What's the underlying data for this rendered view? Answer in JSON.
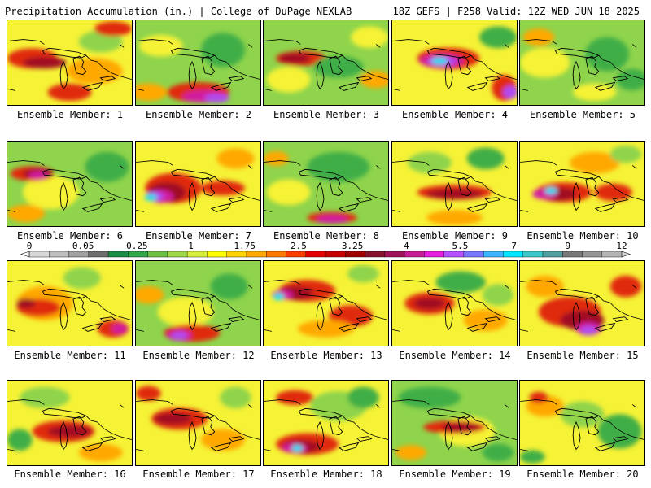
{
  "header": {
    "title": "Precipitation Accumulation (in.) | College of DuPage NEXLAB",
    "run_info": "18Z GEFS | F258 Valid: 12Z WED JUN 18 2025"
  },
  "colorbar": {
    "labels": [
      "0",
      "0.05",
      "0.25",
      "1",
      "1.75",
      "2.5",
      "3.25",
      "4",
      "5.5",
      "7",
      "9",
      "12"
    ],
    "colors": [
      "#d8d8d8",
      "#bebebe",
      "#a0a0a0",
      "#6e6e6e",
      "#1e8c46",
      "#33a64a",
      "#6cc048",
      "#9ed84a",
      "#d8f03c",
      "#ffff00",
      "#ffd200",
      "#ffaa00",
      "#ff7800",
      "#ff3c00",
      "#e60000",
      "#c80000",
      "#a00000",
      "#821430",
      "#a0145a",
      "#c81e96",
      "#e61edc",
      "#b450ff",
      "#7878ff",
      "#3cb4ff",
      "#00e6ff",
      "#3cc8c8",
      "#50a0a0",
      "#787878",
      "#969696",
      "#b4b4b4"
    ]
  },
  "legend_palette": {
    "light_green": "#8fd44c",
    "green": "#3fae46",
    "yellow": "#f6f236",
    "orange": "#ffa800",
    "red": "#e02a10",
    "dark_red": "#a00c24",
    "magenta": "#d21ea0",
    "purple": "#b04cf0",
    "cyan": "#24d8ee"
  },
  "panels": [
    {
      "label": "Ensemble Member: 1",
      "base": "yellow",
      "blobs": [
        [
          "red",
          0.2,
          0.45,
          0.35,
          0.18
        ],
        [
          "dark_red",
          0.3,
          0.5,
          0.3,
          0.08
        ],
        [
          "orange",
          0.7,
          0.6,
          0.4,
          0.25
        ],
        [
          "light_green",
          0.75,
          0.25,
          0.3,
          0.2
        ],
        [
          "red",
          0.85,
          0.1,
          0.25,
          0.12
        ],
        [
          "red",
          0.5,
          0.85,
          0.3,
          0.15
        ]
      ]
    },
    {
      "label": "Ensemble Member: 2",
      "base": "light_green",
      "blobs": [
        [
          "green",
          0.7,
          0.35,
          0.3,
          0.35
        ],
        [
          "yellow",
          0.2,
          0.3,
          0.3,
          0.2
        ],
        [
          "red",
          0.5,
          0.85,
          0.45,
          0.18
        ],
        [
          "magenta",
          0.55,
          0.9,
          0.3,
          0.09
        ],
        [
          "purple",
          0.65,
          0.92,
          0.15,
          0.05
        ],
        [
          "orange",
          0.1,
          0.85,
          0.25,
          0.15
        ]
      ]
    },
    {
      "label": "Ensemble Member: 3",
      "base": "light_green",
      "blobs": [
        [
          "yellow",
          0.2,
          0.7,
          0.3,
          0.25
        ],
        [
          "red",
          0.3,
          0.45,
          0.35,
          0.12
        ],
        [
          "dark_red",
          0.25,
          0.45,
          0.2,
          0.06
        ],
        [
          "green",
          0.6,
          0.55,
          0.35,
          0.2
        ],
        [
          "yellow",
          0.85,
          0.2,
          0.25,
          0.2
        ],
        [
          "orange",
          0.9,
          0.7,
          0.2,
          0.15
        ]
      ]
    },
    {
      "label": "Ensemble Member: 4",
      "base": "yellow",
      "blobs": [
        [
          "red",
          0.45,
          0.45,
          0.45,
          0.2
        ],
        [
          "magenta",
          0.4,
          0.48,
          0.3,
          0.1
        ],
        [
          "purple",
          0.4,
          0.48,
          0.18,
          0.06
        ],
        [
          "cyan",
          0.38,
          0.48,
          0.08,
          0.03
        ],
        [
          "green",
          0.85,
          0.2,
          0.25,
          0.2
        ],
        [
          "red",
          0.9,
          0.8,
          0.15,
          0.25
        ],
        [
          "purple",
          0.95,
          0.85,
          0.07,
          0.1
        ]
      ]
    },
    {
      "label": "Ensemble Member: 5",
      "base": "light_green",
      "blobs": [
        [
          "yellow",
          0.2,
          0.5,
          0.35,
          0.3
        ],
        [
          "green",
          0.7,
          0.4,
          0.3,
          0.35
        ],
        [
          "orange",
          0.15,
          0.2,
          0.2,
          0.15
        ],
        [
          "yellow",
          0.6,
          0.85,
          0.3,
          0.15
        ],
        [
          "green",
          0.9,
          0.7,
          0.2,
          0.2
        ]
      ]
    },
    {
      "label": "Ensemble Member: 6",
      "base": "light_green",
      "blobs": [
        [
          "yellow",
          0.35,
          0.6,
          0.4,
          0.35
        ],
        [
          "red",
          0.2,
          0.38,
          0.3,
          0.12
        ],
        [
          "dark_red",
          0.25,
          0.38,
          0.2,
          0.06
        ],
        [
          "magenta",
          0.25,
          0.4,
          0.1,
          0.04
        ],
        [
          "green",
          0.8,
          0.3,
          0.3,
          0.3
        ],
        [
          "orange",
          0.15,
          0.85,
          0.25,
          0.15
        ]
      ]
    },
    {
      "label": "Ensemble Member: 7",
      "base": "yellow",
      "blobs": [
        [
          "red",
          0.3,
          0.55,
          0.4,
          0.3
        ],
        [
          "dark_red",
          0.25,
          0.6,
          0.25,
          0.18
        ],
        [
          "magenta",
          0.2,
          0.65,
          0.15,
          0.1
        ],
        [
          "purple",
          0.15,
          0.65,
          0.1,
          0.06
        ],
        [
          "cyan",
          0.12,
          0.66,
          0.05,
          0.03
        ],
        [
          "red",
          0.7,
          0.55,
          0.3,
          0.12
        ],
        [
          "orange",
          0.8,
          0.2,
          0.25,
          0.18
        ]
      ]
    },
    {
      "label": "Ensemble Member: 8",
      "base": "light_green",
      "blobs": [
        [
          "green",
          0.6,
          0.3,
          0.45,
          0.3
        ],
        [
          "yellow",
          0.2,
          0.6,
          0.3,
          0.25
        ],
        [
          "red",
          0.55,
          0.9,
          0.35,
          0.08
        ],
        [
          "magenta",
          0.55,
          0.92,
          0.2,
          0.04
        ],
        [
          "orange",
          0.1,
          0.2,
          0.15,
          0.12
        ]
      ]
    },
    {
      "label": "Ensemble Member: 9",
      "base": "yellow",
      "blobs": [
        [
          "red",
          0.5,
          0.6,
          0.55,
          0.12
        ],
        [
          "dark_red",
          0.5,
          0.62,
          0.4,
          0.06
        ],
        [
          "light_green",
          0.3,
          0.25,
          0.3,
          0.2
        ],
        [
          "green",
          0.75,
          0.2,
          0.25,
          0.2
        ],
        [
          "orange",
          0.5,
          0.9,
          0.4,
          0.12
        ]
      ]
    },
    {
      "label": "Ensemble Member: 10",
      "base": "yellow",
      "blobs": [
        [
          "red",
          0.35,
          0.6,
          0.4,
          0.18
        ],
        [
          "dark_red",
          0.3,
          0.62,
          0.25,
          0.1
        ],
        [
          "magenta",
          0.2,
          0.62,
          0.15,
          0.07
        ],
        [
          "cyan",
          0.25,
          0.58,
          0.05,
          0.03
        ],
        [
          "red",
          0.75,
          0.6,
          0.25,
          0.15
        ],
        [
          "orange",
          0.6,
          0.25,
          0.35,
          0.2
        ],
        [
          "light_green",
          0.85,
          0.15,
          0.2,
          0.15
        ]
      ]
    },
    {
      "label": "Ensemble Member: 11",
      "base": "yellow",
      "blobs": [
        [
          "orange",
          0.3,
          0.5,
          0.4,
          0.35
        ],
        [
          "red",
          0.25,
          0.55,
          0.3,
          0.15
        ],
        [
          "dark_red",
          0.15,
          0.5,
          0.1,
          0.06
        ],
        [
          "red",
          0.85,
          0.8,
          0.2,
          0.15
        ],
        [
          "magenta",
          0.9,
          0.8,
          0.07,
          0.06
        ],
        [
          "light_green",
          0.6,
          0.2,
          0.25,
          0.2
        ]
      ]
    },
    {
      "label": "Ensemble Member: 12",
      "base": "light_green",
      "blobs": [
        [
          "yellow",
          0.4,
          0.6,
          0.4,
          0.3
        ],
        [
          "red",
          0.45,
          0.85,
          0.4,
          0.15
        ],
        [
          "magenta",
          0.35,
          0.88,
          0.15,
          0.07
        ],
        [
          "purple",
          0.35,
          0.88,
          0.08,
          0.04
        ],
        [
          "green",
          0.75,
          0.3,
          0.25,
          0.25
        ],
        [
          "orange",
          0.1,
          0.4,
          0.2,
          0.15
        ]
      ]
    },
    {
      "label": "Ensemble Member: 13",
      "base": "yellow",
      "blobs": [
        [
          "red",
          0.35,
          0.35,
          0.4,
          0.2
        ],
        [
          "dark_red",
          0.25,
          0.38,
          0.25,
          0.1
        ],
        [
          "magenta",
          0.15,
          0.4,
          0.12,
          0.06
        ],
        [
          "cyan",
          0.12,
          0.42,
          0.04,
          0.03
        ],
        [
          "red",
          0.7,
          0.65,
          0.3,
          0.2
        ],
        [
          "orange",
          0.5,
          0.8,
          0.4,
          0.15
        ],
        [
          "light_green",
          0.8,
          0.15,
          0.2,
          0.15
        ]
      ]
    },
    {
      "label": "Ensemble Member: 14",
      "base": "yellow",
      "blobs": [
        [
          "red",
          0.3,
          0.5,
          0.35,
          0.2
        ],
        [
          "dark_red",
          0.3,
          0.5,
          0.2,
          0.08
        ],
        [
          "green",
          0.55,
          0.25,
          0.35,
          0.2
        ],
        [
          "orange",
          0.75,
          0.7,
          0.3,
          0.2
        ],
        [
          "light_green",
          0.85,
          0.4,
          0.2,
          0.2
        ]
      ]
    },
    {
      "label": "Ensemble Member: 15",
      "base": "yellow",
      "blobs": [
        [
          "red",
          0.4,
          0.6,
          0.45,
          0.3
        ],
        [
          "dark_red",
          0.5,
          0.7,
          0.3,
          0.18
        ],
        [
          "magenta",
          0.55,
          0.8,
          0.15,
          0.1
        ],
        [
          "purple",
          0.55,
          0.82,
          0.08,
          0.05
        ],
        [
          "red",
          0.85,
          0.3,
          0.2,
          0.2
        ],
        [
          "orange",
          0.2,
          0.3,
          0.25,
          0.2
        ]
      ]
    },
    {
      "label": "Ensemble Member: 16",
      "base": "yellow",
      "blobs": [
        [
          "light_green",
          0.3,
          0.2,
          0.35,
          0.2
        ],
        [
          "red",
          0.45,
          0.6,
          0.45,
          0.2
        ],
        [
          "dark_red",
          0.5,
          0.6,
          0.3,
          0.08
        ],
        [
          "green",
          0.1,
          0.7,
          0.15,
          0.2
        ],
        [
          "orange",
          0.75,
          0.85,
          0.3,
          0.15
        ]
      ]
    },
    {
      "label": "Ensemble Member: 17",
      "base": "yellow",
      "blobs": [
        [
          "red",
          0.35,
          0.45,
          0.4,
          0.2
        ],
        [
          "dark_red",
          0.3,
          0.45,
          0.25,
          0.08
        ],
        [
          "orange",
          0.7,
          0.7,
          0.3,
          0.2
        ],
        [
          "red",
          0.1,
          0.15,
          0.15,
          0.12
        ],
        [
          "light_green",
          0.8,
          0.2,
          0.2,
          0.2
        ]
      ]
    },
    {
      "label": "Ensemble Member: 18",
      "base": "yellow",
      "blobs": [
        [
          "light_green",
          0.6,
          0.3,
          0.4,
          0.3
        ],
        [
          "green",
          0.8,
          0.2,
          0.2,
          0.2
        ],
        [
          "red",
          0.35,
          0.75,
          0.45,
          0.2
        ],
        [
          "dark_red",
          0.3,
          0.78,
          0.25,
          0.1
        ],
        [
          "magenta",
          0.25,
          0.8,
          0.15,
          0.06
        ],
        [
          "cyan",
          0.27,
          0.8,
          0.04,
          0.03
        ],
        [
          "red",
          0.25,
          0.2,
          0.25,
          0.12
        ]
      ]
    },
    {
      "label": "Ensemble Member: 19",
      "base": "light_green",
      "blobs": [
        [
          "green",
          0.3,
          0.2,
          0.45,
          0.2
        ],
        [
          "yellow",
          0.6,
          0.6,
          0.4,
          0.3
        ],
        [
          "red",
          0.5,
          0.55,
          0.45,
          0.1
        ],
        [
          "dark_red",
          0.55,
          0.55,
          0.25,
          0.05
        ],
        [
          "orange",
          0.15,
          0.85,
          0.2,
          0.12
        ],
        [
          "green",
          0.85,
          0.85,
          0.2,
          0.15
        ]
      ]
    },
    {
      "label": "Ensemble Member: 20",
      "base": "yellow",
      "blobs": [
        [
          "green",
          0.8,
          0.6,
          0.3,
          0.35
        ],
        [
          "light_green",
          0.5,
          0.4,
          0.3,
          0.25
        ],
        [
          "orange",
          0.2,
          0.3,
          0.25,
          0.2
        ],
        [
          "red",
          0.15,
          0.2,
          0.1,
          0.08
        ],
        [
          "green",
          0.1,
          0.9,
          0.15,
          0.1
        ]
      ]
    }
  ]
}
